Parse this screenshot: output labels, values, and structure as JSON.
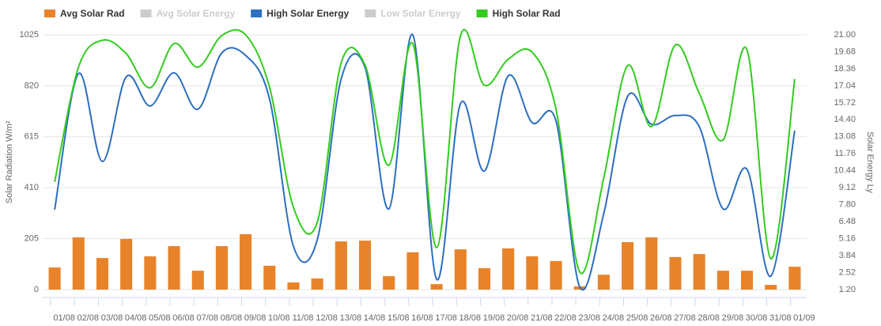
{
  "chart_data": {
    "type": "bar-line",
    "categories": [
      "01/08",
      "02/08",
      "03/08",
      "04/08",
      "05/08",
      "06/08",
      "07/08",
      "08/08",
      "09/08",
      "10/08",
      "11/08",
      "12/08",
      "13/08",
      "14/08",
      "15/08",
      "16/08",
      "17/08",
      "18/08",
      "19/08",
      "20/08",
      "21/08",
      "22/08",
      "23/08",
      "24/08",
      "25/08",
      "26/08",
      "27/08",
      "28/08",
      "29/08",
      "30/08",
      "31/08",
      "01/09"
    ],
    "series": [
      {
        "name": "Avg Solar Rad",
        "color": "#e8832a",
        "kind": "bar",
        "axis": "y",
        "visible": true,
        "values": [
          89,
          210,
          127,
          204,
          134,
          175,
          76,
          175,
          223,
          96,
          29,
          45,
          194,
          197,
          54,
          150,
          22,
          162,
          86,
          166,
          134,
          115,
          13,
          60,
          191,
          210,
          131,
          143,
          76,
          76,
          19,
          92
        ]
      },
      {
        "name": "Avg Solar Energy",
        "color": "#cccccc",
        "kind": "line",
        "axis": "y2",
        "visible": false,
        "values": [
          null,
          null,
          null,
          null,
          null,
          null,
          null,
          null,
          null,
          null,
          null,
          null,
          null,
          null,
          null,
          null,
          null,
          null,
          null,
          null,
          null,
          null,
          null,
          null,
          null,
          null,
          null,
          null,
          null,
          null,
          null,
          null
        ]
      },
      {
        "name": "High Solar Energy",
        "color": "#2b6fc0",
        "kind": "line",
        "axis": "y2",
        "visible": true,
        "values": [
          7.41,
          17.99,
          11.16,
          17.74,
          15.47,
          18.05,
          15.22,
          19.59,
          19.4,
          16.02,
          4.58,
          5.07,
          17.56,
          18.48,
          7.47,
          21.0,
          2.0,
          15.65,
          10.42,
          17.81,
          14.18,
          14.3,
          1.38,
          7.1,
          16.21,
          14.05,
          14.73,
          13.87,
          7.47,
          10.55,
          2.25,
          13.56
        ]
      },
      {
        "name": "Low Solar Energy",
        "color": "#cccccc",
        "kind": "line",
        "axis": "y2",
        "visible": false,
        "values": [
          null,
          null,
          null,
          null,
          null,
          null,
          null,
          null,
          null,
          null,
          null,
          null,
          null,
          null,
          null,
          null,
          null,
          null,
          null,
          null,
          null,
          null,
          null,
          null,
          null,
          null,
          null,
          null,
          null,
          null,
          null,
          null
        ]
      },
      {
        "name": "High Solar Rad",
        "color": "#33cc1f",
        "kind": "line",
        "axis": "y",
        "visible": true,
        "values": [
          433,
          895,
          1003,
          949,
          812,
          990,
          895,
          1022,
          1025,
          815,
          331,
          271,
          911,
          904,
          500,
          990,
          169,
          1022,
          822,
          927,
          955,
          726,
          70,
          449,
          901,
          656,
          984,
          790,
          602,
          965,
          124,
          847
        ]
      }
    ],
    "ylabel": "Solar Radiation W/m²",
    "y2label": "Solar Energy Ly",
    "ylim": [
      0,
      1025
    ],
    "yticks": [
      0,
      205,
      410,
      615,
      820,
      1025
    ],
    "y2lim": [
      1.2,
      21
    ],
    "y2ticks": [
      {
        "value": 1.2,
        "label": "1.20"
      },
      {
        "value": 2.52,
        "label": "2.52"
      },
      {
        "value": 3.84,
        "label": "3.84"
      },
      {
        "value": 5.16,
        "label": "5.16"
      },
      {
        "value": 6.48,
        "label": "6.48"
      },
      {
        "value": 7.8,
        "label": "7.80"
      },
      {
        "value": 9.12,
        "label": "9.12"
      },
      {
        "value": 10.44,
        "label": "10.44"
      },
      {
        "value": 11.76,
        "label": "11.76"
      },
      {
        "value": 13.08,
        "label": "13.08"
      },
      {
        "value": 14.4,
        "label": "14.40"
      },
      {
        "value": 15.72,
        "label": "15.72"
      },
      {
        "value": 17.04,
        "label": "17.04"
      },
      {
        "value": 18.36,
        "label": "18.36"
      },
      {
        "value": 19.68,
        "label": "19.68"
      },
      {
        "value": 21,
        "label": "21.00"
      }
    ],
    "grid": true,
    "legend": "top-left"
  }
}
